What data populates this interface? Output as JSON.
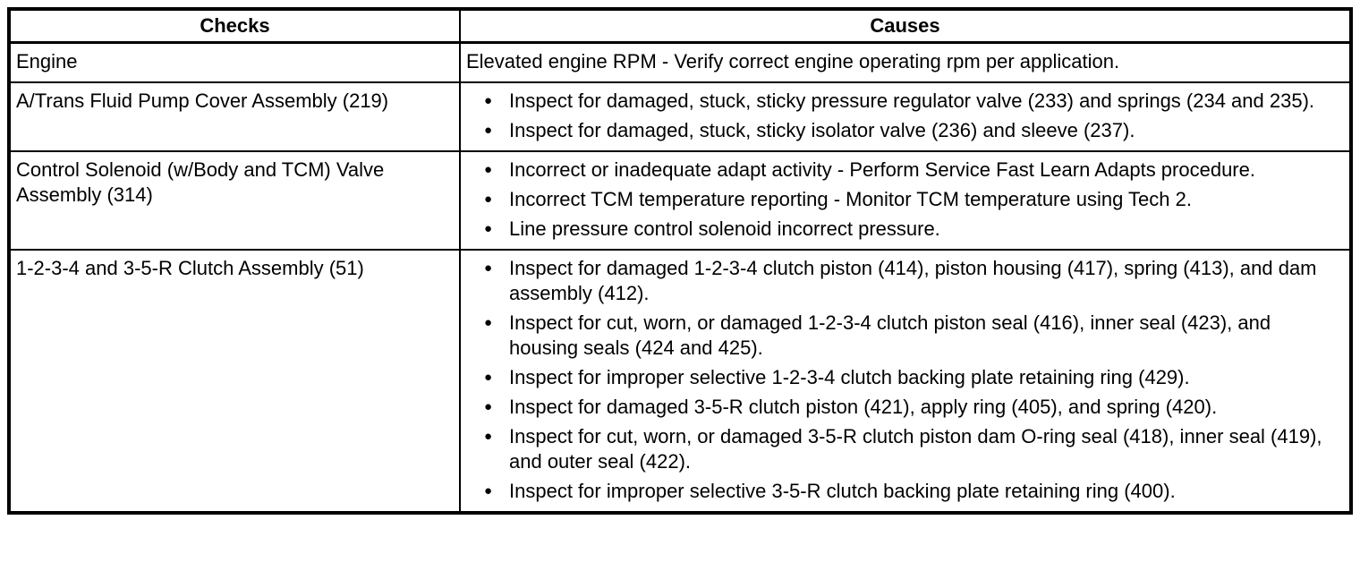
{
  "table": {
    "columns": [
      "Checks",
      "Causes"
    ],
    "rows": [
      {
        "check": "Engine",
        "bulleted": false,
        "causes": [
          "Elevated engine RPM - Verify correct engine operating rpm per application."
        ]
      },
      {
        "check": "A/Trans Fluid Pump Cover Assembly (219)",
        "bulleted": true,
        "causes": [
          "Inspect for damaged, stuck, sticky pressure regulator valve (233) and springs (234 and 235).",
          "Inspect for damaged, stuck, sticky isolator valve (236) and sleeve (237)."
        ]
      },
      {
        "check": "Control Solenoid (w/Body and TCM) Valve Assembly (314)",
        "bulleted": true,
        "causes": [
          "Incorrect or inadequate adapt activity - Perform Service Fast Learn Adapts procedure.",
          "Incorrect TCM temperature reporting - Monitor TCM temperature using Tech 2.",
          "Line pressure control solenoid incorrect pressure."
        ]
      },
      {
        "check": "1-2-3-4 and 3-5-R Clutch Assembly (51)",
        "bulleted": true,
        "causes": [
          "Inspect for damaged 1-2-3-4 clutch piston (414), piston housing (417), spring (413), and dam assembly (412).",
          "Inspect for cut, worn, or damaged 1-2-3-4 clutch piston seal (416), inner seal (423), and housing seals (424 and 425).",
          "Inspect for improper selective 1-2-3-4 clutch backing plate retaining ring (429).",
          "Inspect for damaged 3-5-R clutch piston (421), apply ring (405), and spring (420).",
          "Inspect for cut, worn, or damaged 3-5-R clutch piston dam O-ring seal (418), inner seal (419), and outer seal (422).",
          "Inspect for improper selective 3-5-R clutch backing plate retaining ring (400)."
        ]
      }
    ]
  },
  "colors": {
    "border": "#000000",
    "background": "#ffffff",
    "text": "#000000"
  }
}
